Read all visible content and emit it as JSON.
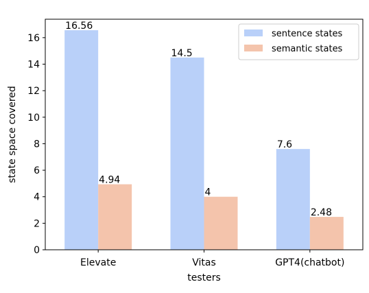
{
  "chart_data": {
    "type": "bar",
    "categories": [
      "Elevate",
      "Vitas",
      "GPT4(chatbot)"
    ],
    "series": [
      {
        "name": "sentence states",
        "values": [
          16.56,
          14.5,
          7.6
        ],
        "color": "#b9d0f9"
      },
      {
        "name": "semantic states",
        "values": [
          4.94,
          4,
          2.48
        ],
        "color": "#f4c4ac"
      }
    ],
    "data_labels": [
      [
        "16.56",
        "14.5",
        "7.6"
      ],
      [
        "4.94",
        "4",
        "2.48"
      ]
    ],
    "xlabel": "testers",
    "ylabel": "state space covered",
    "ylim": [
      0,
      17.39
    ],
    "yticks": [
      0,
      2,
      4,
      6,
      8,
      10,
      12,
      14,
      16
    ],
    "ytick_labels": [
      "0",
      "2",
      "4",
      "6",
      "8",
      "10",
      "12",
      "14",
      "16"
    ],
    "grid": false,
    "legend_position": "top-right"
  }
}
